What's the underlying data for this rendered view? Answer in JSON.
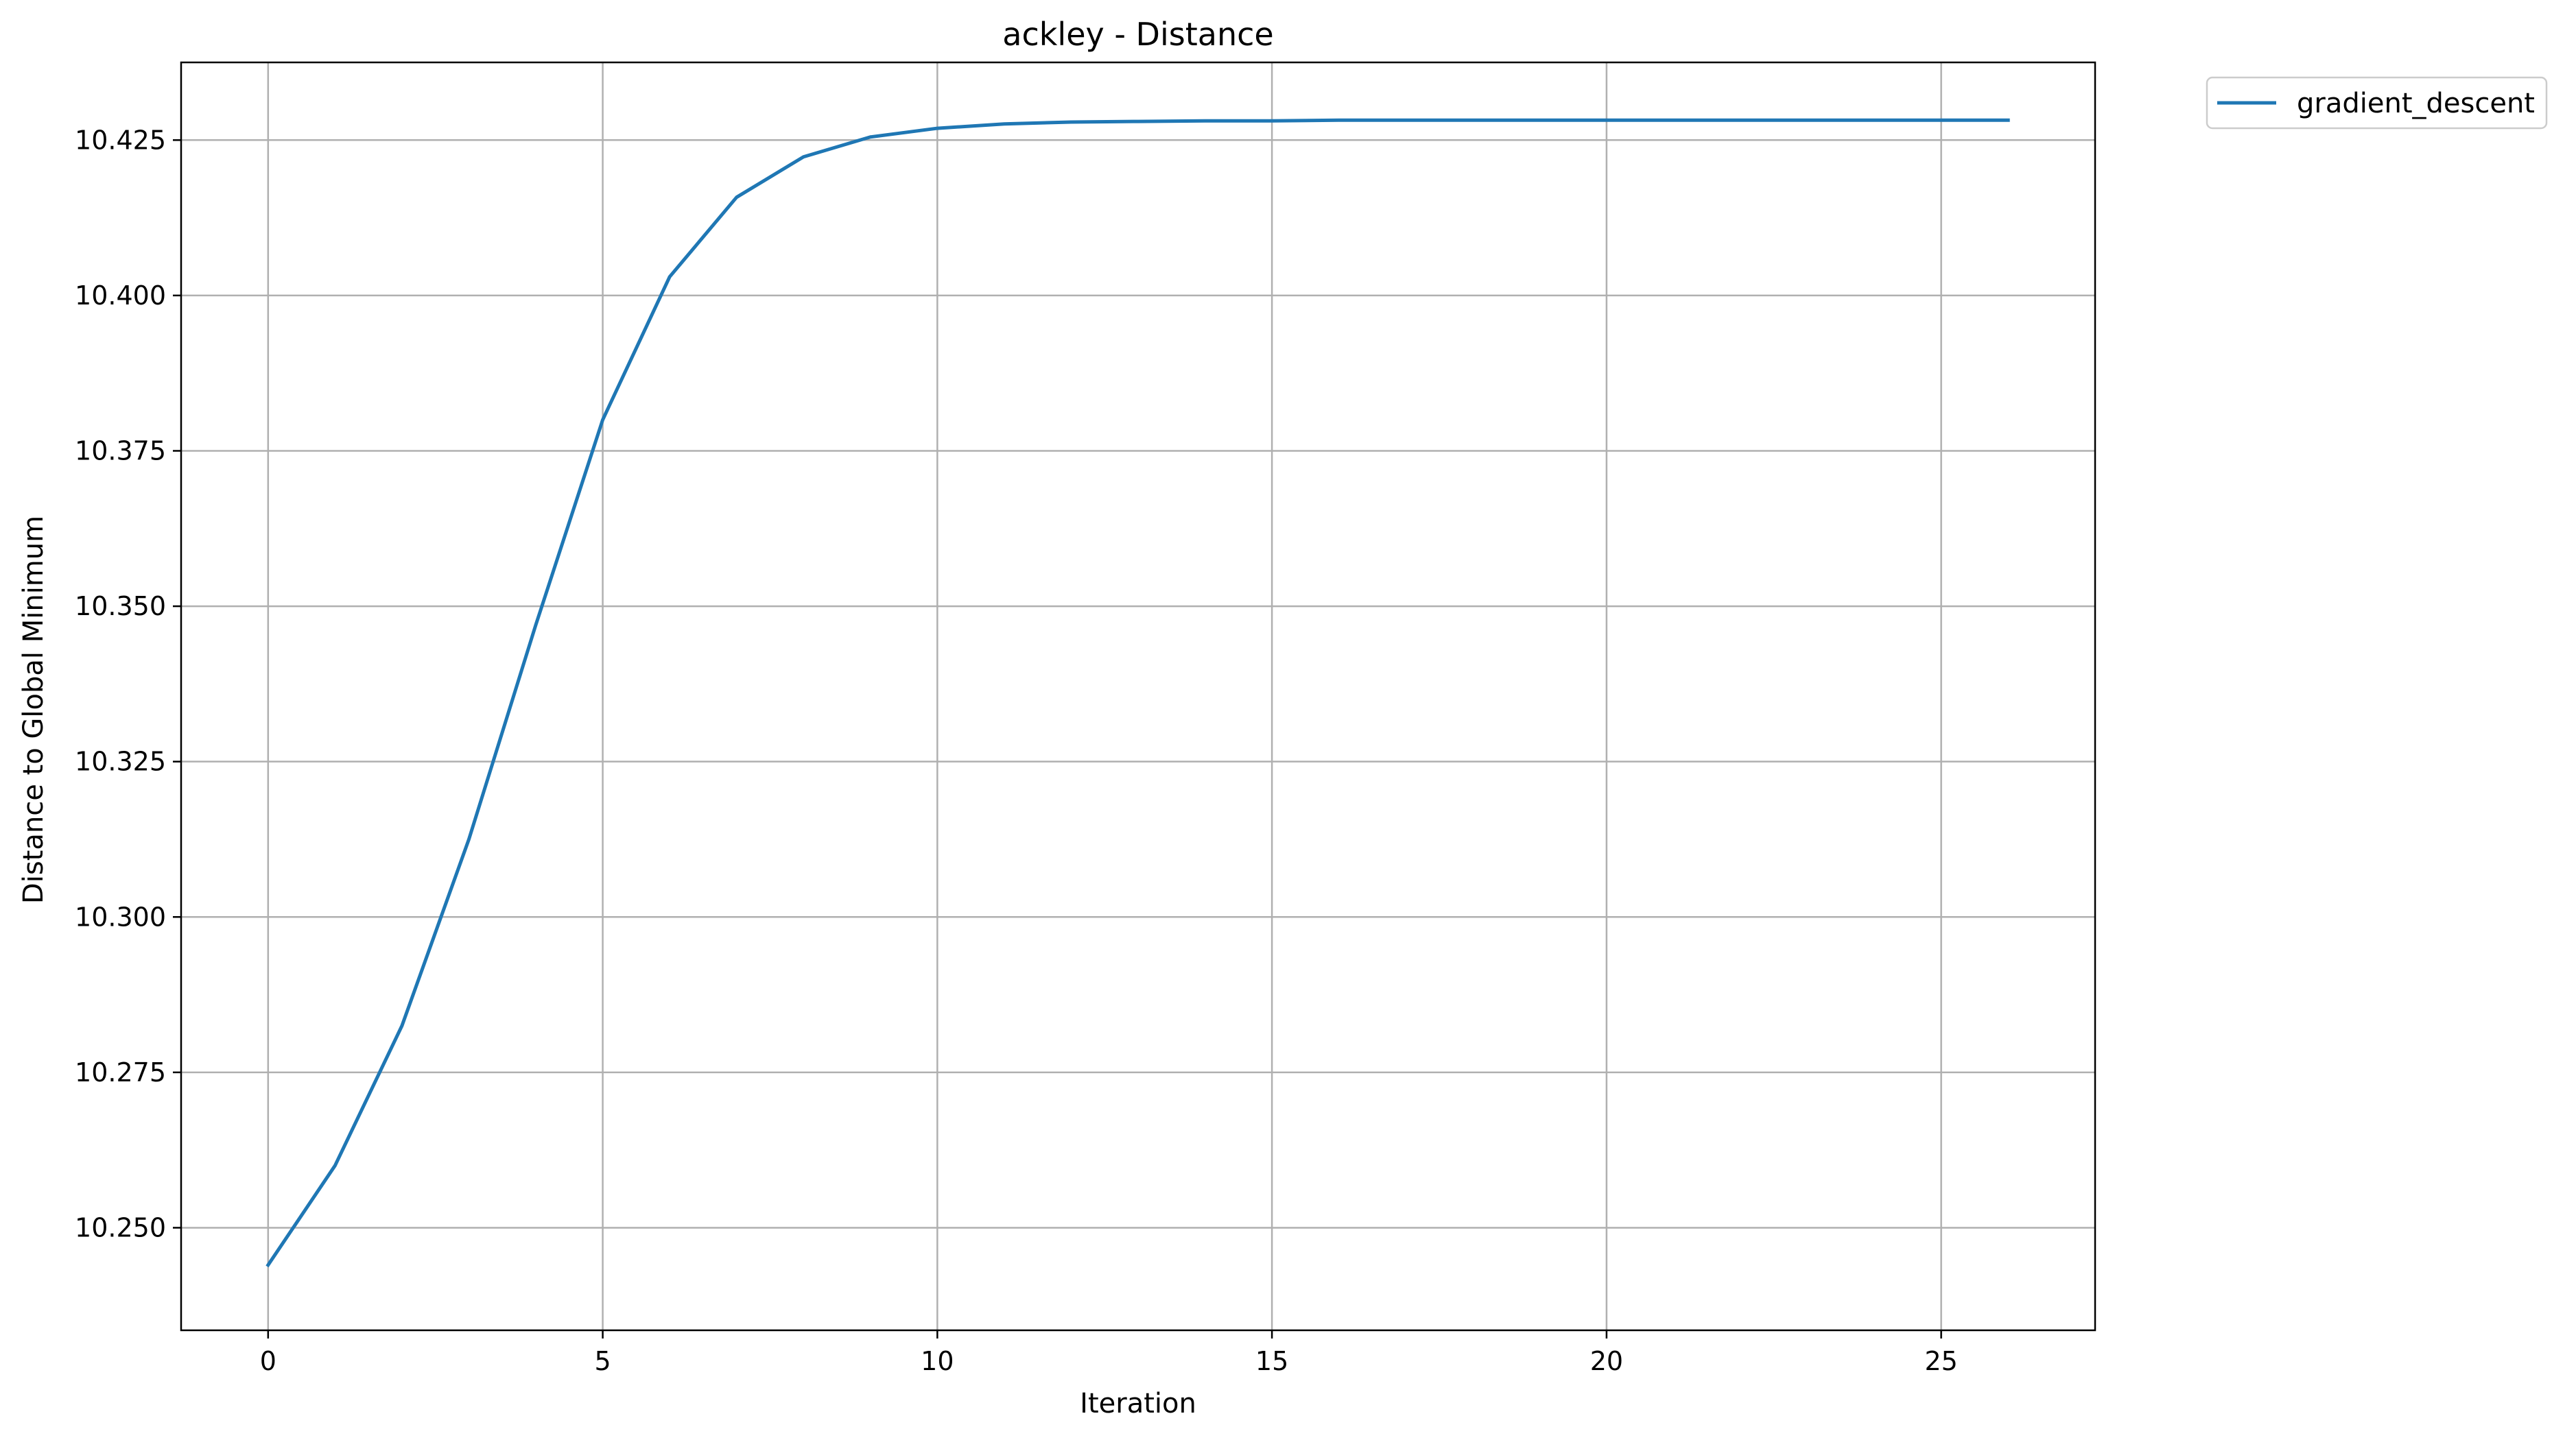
{
  "chart_data": {
    "type": "line",
    "title": "ackley - Distance",
    "xlabel": "Iteration",
    "ylabel": "Distance to Global Minimum",
    "xlim": [
      -1.3,
      27.3
    ],
    "ylim": [
      10.2335,
      10.4375
    ],
    "xticks": [
      0,
      5,
      10,
      15,
      20,
      25
    ],
    "xtick_labels": [
      "0",
      "5",
      "10",
      "15",
      "20",
      "25"
    ],
    "yticks": [
      10.25,
      10.275,
      10.3,
      10.325,
      10.35,
      10.375,
      10.4,
      10.425
    ],
    "ytick_labels": [
      "10.250",
      "10.275",
      "10.300",
      "10.325",
      "10.350",
      "10.375",
      "10.400",
      "10.425"
    ],
    "grid": true,
    "legend_position": "outside-top-right",
    "colors": {
      "series0": "#1f77b4",
      "grid": "#b0b0b0"
    },
    "series": [
      {
        "name": "gradient_descent",
        "x": [
          0,
          1,
          2,
          3,
          4,
          5,
          6,
          7,
          8,
          9,
          10,
          11,
          12,
          13,
          14,
          15,
          16,
          17,
          18,
          19,
          20,
          21,
          22,
          23,
          24,
          25,
          26
        ],
        "values": [
          10.244,
          10.26,
          10.2825,
          10.3125,
          10.347,
          10.38,
          10.403,
          10.4158,
          10.4223,
          10.4255,
          10.4269,
          10.4276,
          10.4279,
          10.428,
          10.4281,
          10.4281,
          10.4282,
          10.4282,
          10.4282,
          10.4282,
          10.4282,
          10.4282,
          10.4282,
          10.4282,
          10.4282,
          10.4282,
          10.4282
        ]
      }
    ]
  }
}
